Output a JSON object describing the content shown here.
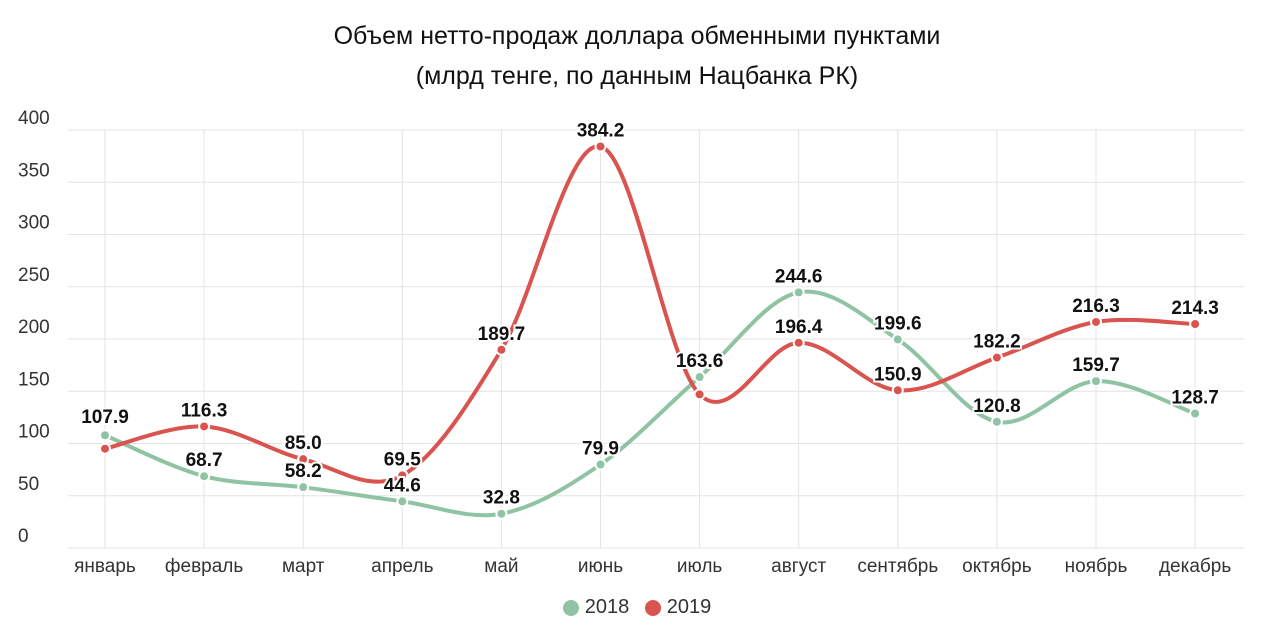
{
  "title_line1": "Объем нетто-продаж доллара обменными пунктами",
  "title_line2": "(млрд тенге, по данным Нацбанка РК)",
  "chart_data": {
    "type": "line",
    "title": "Объем нетто-продаж доллара обменными пунктами (млрд тенге, по данным Нацбанка РК)",
    "xlabel": "",
    "ylabel": "",
    "categories": [
      "январь",
      "февраль",
      "март",
      "апрель",
      "май",
      "июнь",
      "июль",
      "август",
      "сентябрь",
      "октябрь",
      "ноябрь",
      "декабрь"
    ],
    "ylim": [
      0,
      400
    ],
    "yticks": [
      0,
      50,
      100,
      150,
      200,
      250,
      300,
      350,
      400
    ],
    "grid": true,
    "legend_position": "bottom",
    "series": [
      {
        "name": "2018",
        "color": "#8fc3a3",
        "values": [
          107.9,
          68.7,
          58.2,
          44.6,
          32.8,
          79.9,
          163.6,
          244.6,
          199.6,
          120.8,
          159.7,
          128.7
        ],
        "labels": [
          "107.9",
          "68.7",
          "58.2",
          "44.6",
          "32.8",
          "79.9",
          "163.6",
          "244.6",
          "199.6",
          "120.8",
          "159.7",
          "128.7"
        ]
      },
      {
        "name": "2019",
        "color": "#d9534f",
        "values": [
          95.0,
          116.3,
          85.0,
          69.5,
          189.7,
          384.2,
          147.0,
          196.4,
          150.9,
          182.2,
          216.3,
          214.3
        ],
        "labels": [
          "",
          "116.3",
          "85.0",
          "69.5",
          "189.7",
          "384.2",
          "",
          "196.4",
          "150.9",
          "182.2",
          "216.3",
          "214.3"
        ]
      }
    ]
  }
}
